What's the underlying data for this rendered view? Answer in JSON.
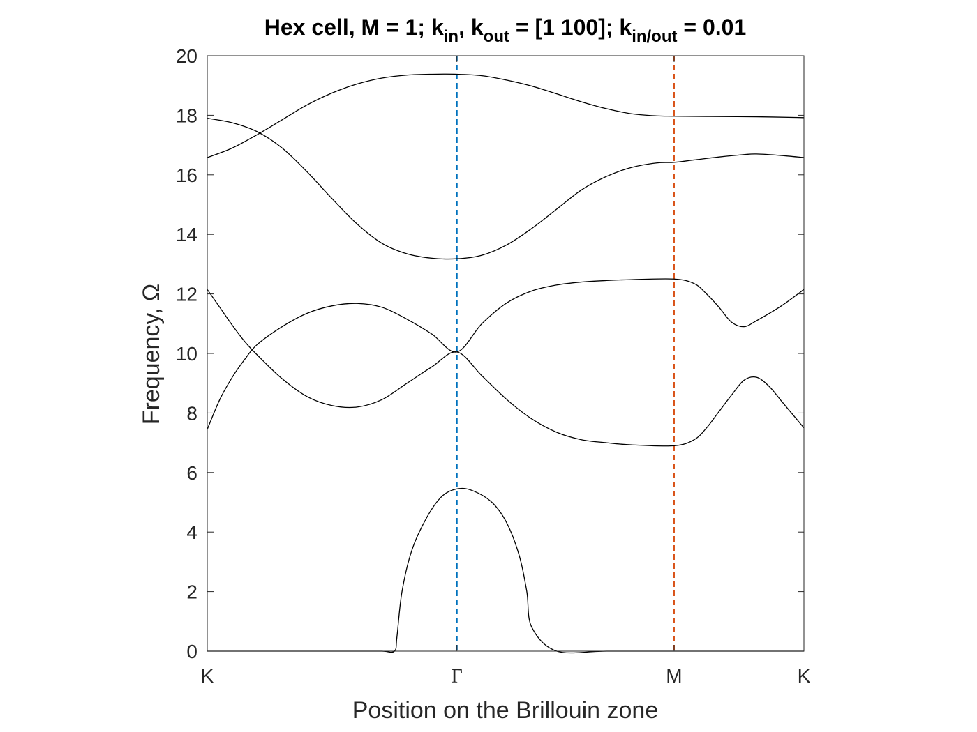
{
  "chart_data": {
    "type": "line",
    "title_parts": [
      {
        "text": "Hex cell, M = 1; k",
        "sub": false
      },
      {
        "text": "in",
        "sub": true
      },
      {
        "text": ", k",
        "sub": false
      },
      {
        "text": "out",
        "sub": true
      },
      {
        "text": " = [1 100]; k",
        "sub": false
      },
      {
        "text": "in/out",
        "sub": true
      },
      {
        "text": " = 0.01",
        "sub": false
      }
    ],
    "xlabel": "Position on the Brillouin zone",
    "ylabel": "Frequency, Ω",
    "ylim": [
      0,
      20
    ],
    "xlim": [
      0,
      2.39
    ],
    "yticks": [
      0,
      2,
      4,
      6,
      8,
      10,
      12,
      14,
      16,
      18,
      20
    ],
    "xticks": [
      {
        "label": "K",
        "value": 0
      },
      {
        "label": "Γ",
        "value": 1.0
      },
      {
        "label": "M",
        "value": 1.87
      },
      {
        "label": "K",
        "value": 2.39
      }
    ],
    "vlines": [
      {
        "x": 1.0,
        "color": "#0072BD",
        "style": "dashed"
      },
      {
        "x": 1.87,
        "color": "#D95319",
        "style": "dashed"
      }
    ],
    "grid": false,
    "series": [
      {
        "color": "#000000",
        "points": [
          [
            0,
            0
          ],
          [
            0.2,
            0
          ],
          [
            0.4,
            0
          ],
          [
            0.6,
            0
          ],
          [
            0.7,
            0
          ],
          [
            0.75,
            0
          ],
          [
            0.76,
            0.5
          ],
          [
            0.78,
            2.0
          ],
          [
            0.82,
            3.4
          ],
          [
            0.88,
            4.5
          ],
          [
            0.94,
            5.2
          ],
          [
            1.0,
            5.45
          ],
          [
            1.06,
            5.4
          ],
          [
            1.14,
            5.0
          ],
          [
            1.2,
            4.3
          ],
          [
            1.25,
            3.2
          ],
          [
            1.28,
            2.0
          ],
          [
            1.3,
            0.8
          ],
          [
            1.4,
            0
          ],
          [
            1.6,
            0
          ],
          [
            1.87,
            0
          ],
          [
            2.1,
            0
          ],
          [
            2.39,
            0
          ]
        ]
      },
      {
        "color": "#000000",
        "points": [
          [
            0,
            7.45
          ],
          [
            0.05,
            8.45
          ],
          [
            0.1,
            9.2
          ],
          [
            0.15,
            9.8
          ],
          [
            0.2,
            10.3
          ],
          [
            0.3,
            10.9
          ],
          [
            0.4,
            11.35
          ],
          [
            0.5,
            11.6
          ],
          [
            0.6,
            11.68
          ],
          [
            0.7,
            11.55
          ],
          [
            0.8,
            11.15
          ],
          [
            0.9,
            10.65
          ],
          [
            1.0,
            10.05
          ],
          [
            1.1,
            11.0
          ],
          [
            1.2,
            11.7
          ],
          [
            1.3,
            12.1
          ],
          [
            1.4,
            12.3
          ],
          [
            1.5,
            12.4
          ],
          [
            1.6,
            12.45
          ],
          [
            1.7,
            12.48
          ],
          [
            1.87,
            12.5
          ],
          [
            1.95,
            12.35
          ],
          [
            2.0,
            12.0
          ],
          [
            2.05,
            11.55
          ],
          [
            2.1,
            11.05
          ],
          [
            2.15,
            10.9
          ],
          [
            2.2,
            11.1
          ],
          [
            2.3,
            11.6
          ],
          [
            2.39,
            12.15
          ]
        ]
      },
      {
        "color": "#000000",
        "points": [
          [
            0,
            12.15
          ],
          [
            0.05,
            11.55
          ],
          [
            0.1,
            10.95
          ],
          [
            0.15,
            10.4
          ],
          [
            0.2,
            9.95
          ],
          [
            0.3,
            9.15
          ],
          [
            0.4,
            8.55
          ],
          [
            0.5,
            8.25
          ],
          [
            0.6,
            8.2
          ],
          [
            0.7,
            8.45
          ],
          [
            0.8,
            9.0
          ],
          [
            0.9,
            9.55
          ],
          [
            1.0,
            10.05
          ],
          [
            1.1,
            9.25
          ],
          [
            1.2,
            8.45
          ],
          [
            1.3,
            7.8
          ],
          [
            1.4,
            7.35
          ],
          [
            1.5,
            7.1
          ],
          [
            1.6,
            7.0
          ],
          [
            1.7,
            6.93
          ],
          [
            1.87,
            6.9
          ],
          [
            1.95,
            7.1
          ],
          [
            2.0,
            7.5
          ],
          [
            2.05,
            8.05
          ],
          [
            2.1,
            8.6
          ],
          [
            2.15,
            9.1
          ],
          [
            2.2,
            9.2
          ],
          [
            2.25,
            8.9
          ],
          [
            2.3,
            8.4
          ],
          [
            2.35,
            7.9
          ],
          [
            2.39,
            7.5
          ]
        ]
      },
      {
        "color": "#000000",
        "points": [
          [
            0,
            17.9
          ],
          [
            0.1,
            17.75
          ],
          [
            0.2,
            17.45
          ],
          [
            0.3,
            16.9
          ],
          [
            0.4,
            16.1
          ],
          [
            0.5,
            15.2
          ],
          [
            0.6,
            14.35
          ],
          [
            0.7,
            13.7
          ],
          [
            0.8,
            13.35
          ],
          [
            0.9,
            13.2
          ],
          [
            1.0,
            13.18
          ],
          [
            1.1,
            13.3
          ],
          [
            1.2,
            13.65
          ],
          [
            1.3,
            14.2
          ],
          [
            1.4,
            14.85
          ],
          [
            1.5,
            15.5
          ],
          [
            1.6,
            15.95
          ],
          [
            1.7,
            16.25
          ],
          [
            1.8,
            16.4
          ],
          [
            1.87,
            16.42
          ],
          [
            1.95,
            16.5
          ],
          [
            2.05,
            16.6
          ],
          [
            2.15,
            16.68
          ],
          [
            2.2,
            16.7
          ],
          [
            2.3,
            16.65
          ],
          [
            2.39,
            16.58
          ]
        ]
      },
      {
        "color": "#000000",
        "points": [
          [
            0,
            16.58
          ],
          [
            0.1,
            16.9
          ],
          [
            0.2,
            17.35
          ],
          [
            0.3,
            17.85
          ],
          [
            0.4,
            18.35
          ],
          [
            0.5,
            18.75
          ],
          [
            0.6,
            19.05
          ],
          [
            0.7,
            19.25
          ],
          [
            0.8,
            19.35
          ],
          [
            0.9,
            19.38
          ],
          [
            1.0,
            19.38
          ],
          [
            1.1,
            19.33
          ],
          [
            1.2,
            19.18
          ],
          [
            1.3,
            18.98
          ],
          [
            1.4,
            18.72
          ],
          [
            1.5,
            18.45
          ],
          [
            1.6,
            18.22
          ],
          [
            1.7,
            18.05
          ],
          [
            1.8,
            17.98
          ],
          [
            1.87,
            17.97
          ],
          [
            2.0,
            17.96
          ],
          [
            2.2,
            17.95
          ],
          [
            2.39,
            17.92
          ]
        ]
      }
    ]
  }
}
